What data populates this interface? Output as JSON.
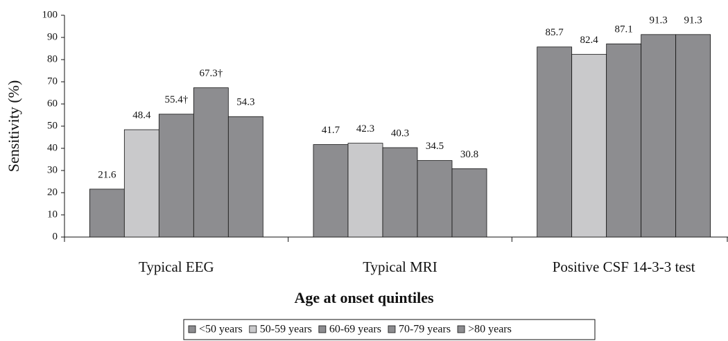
{
  "chart_data": {
    "type": "bar",
    "y_label": "Sensitivity (%)",
    "x_label": "Age at onset quintiles",
    "categories": [
      "Typical EEG",
      "Typical MRI",
      "Positive CSF 14-3-3 test"
    ],
    "series": [
      {
        "name": "<50 years",
        "color": "#8d8d90",
        "values": [
          21.6,
          41.7,
          85.7
        ]
      },
      {
        "name": "50-59 years",
        "color": "#c9c9cb",
        "values": [
          48.4,
          42.3,
          82.4
        ]
      },
      {
        "name": "60-69 years",
        "color": "#8d8d90",
        "values": [
          55.4,
          40.3,
          87.1
        ],
        "value_labels": [
          "55.4†",
          "40.3",
          "87.1"
        ]
      },
      {
        "name": "70-79 years",
        "color": "#8d8d90",
        "values": [
          67.3,
          34.5,
          91.3
        ],
        "value_labels": [
          "67.3†",
          "34.5",
          "91.3"
        ]
      },
      {
        "name": ">80 years",
        "color": "#8d8d90",
        "values": [
          54.3,
          30.8,
          91.3
        ]
      }
    ],
    "ylim": [
      0,
      100
    ],
    "yticks": [
      0,
      10,
      20,
      30,
      40,
      50,
      60,
      70,
      80,
      90,
      100
    ],
    "grid": false
  }
}
